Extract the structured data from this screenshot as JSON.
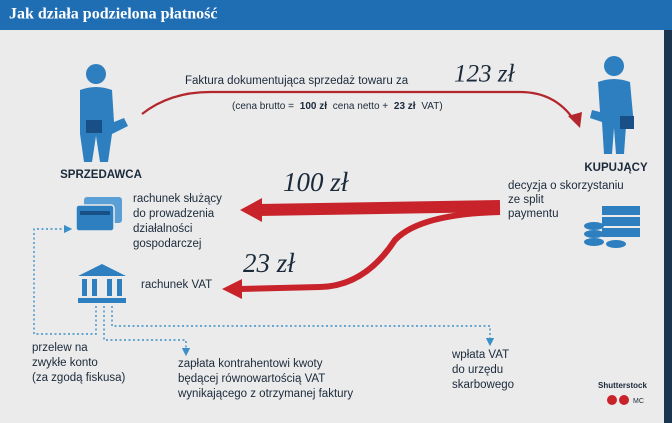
{
  "header": {
    "title": "Jak działa podzielona płatność"
  },
  "seller": {
    "label": "SPRZEDAWCA"
  },
  "buyer": {
    "label": "KUPUJĄCY"
  },
  "invoice": {
    "text": "Faktura dokumentująca sprzedaż towaru za",
    "amount": "123 zł",
    "note": [
      "(cena brutto =",
      "100 zł",
      "cena netto +",
      "23 zł",
      "VAT)"
    ]
  },
  "net_transfer": {
    "amount": "100 zł",
    "account": [
      "rachunek służący",
      "do prowadzenia",
      "działalności",
      "gospodarczej"
    ]
  },
  "decision": [
    "decyzja o skorzystaniu",
    "ze split",
    "paymentu"
  ],
  "vat_transfer": {
    "amount": "23 zł",
    "account": "rachunek VAT"
  },
  "outflows": [
    [
      "przelew na",
      "zwykłe konto",
      "(za zgodą fiskusa)"
    ],
    [
      "zapłata kontrahentowi kwoty",
      "będącej równowartością VAT",
      "wynikającego z otrzymanej faktury"
    ],
    [
      "wpłata VAT",
      "do urzędu",
      "skarbowego"
    ]
  ],
  "credits": {
    "source": "Shutterstock",
    "author": "MC"
  }
}
